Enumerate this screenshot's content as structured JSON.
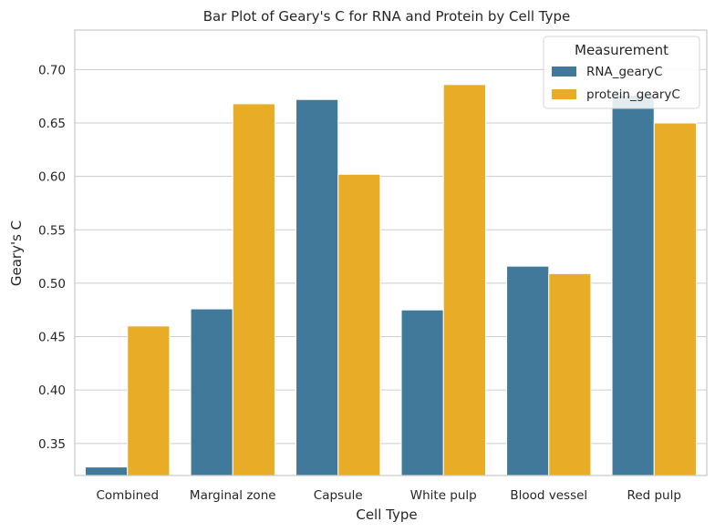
{
  "chart_data": {
    "type": "bar",
    "title": "Bar Plot of Geary's C for RNA and Protein by Cell Type",
    "xlabel": "Cell Type",
    "ylabel": "Geary's C",
    "categories": [
      "Combined",
      "Marginal zone",
      "Capsule",
      "White pulp",
      "Blood vessel",
      "Red pulp"
    ],
    "series": [
      {
        "name": "RNA_gearyC",
        "color": "#41799a",
        "values": [
          0.328,
          0.476,
          0.672,
          0.475,
          0.516,
          0.676
        ]
      },
      {
        "name": "protein_gearyC",
        "color": "#e8ac26",
        "values": [
          0.46,
          0.668,
          0.602,
          0.686,
          0.509,
          0.65
        ]
      }
    ],
    "ylim": [
      0.32,
      0.737
    ],
    "yticks": [
      "0.35",
      "0.40",
      "0.45",
      "0.50",
      "0.55",
      "0.60",
      "0.65",
      "0.70"
    ],
    "grid": true,
    "legend": {
      "title": "Measurement",
      "placement": "top-right"
    }
  }
}
